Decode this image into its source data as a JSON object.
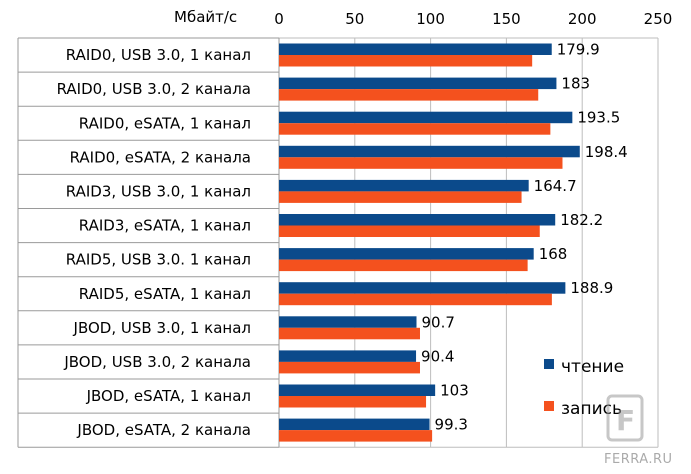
{
  "chart_data": {
    "type": "bar",
    "orientation": "horizontal",
    "unit_label": "Мбайт/с",
    "xlim": [
      0,
      250
    ],
    "xticks": [
      0,
      50,
      100,
      150,
      200,
      250
    ],
    "tick_position": "top",
    "grid": true,
    "legend_position": "bottom-right",
    "categories": [
      "RAID0, USB 3.0, 1 канал",
      "RAID0, USB 3.0, 2 канала",
      "RAID0, eSATA, 1 канал",
      "RAID0, eSATA, 2 канала",
      "RAID3, USB 3.0, 1 канал",
      "RAID3, eSATA, 1 канал",
      "RAID5, USB 3.0. 1 канал",
      "RAID5, eSATA, 1 канал",
      "JBOD, USB 3.0, 1 канал",
      "JBOD, USB 3.0, 2 канала",
      "JBOD, eSATA, 1 канал",
      "JBOD, eSATA, 2 канала"
    ],
    "series": [
      {
        "name": "чтение",
        "color": "#0b4a8b",
        "values": [
          179.9,
          183,
          193.5,
          198.4,
          164.7,
          182.2,
          168,
          188.9,
          90.7,
          90.4,
          103,
          99.3
        ],
        "labels": [
          "179.9",
          "183",
          "193.5",
          "198.4",
          "164.7",
          "182.2",
          "168",
          "188.9",
          "90.7",
          "90.4",
          "103",
          "99.3"
        ]
      },
      {
        "name": "запись",
        "color": "#f4511e",
        "values": [
          167,
          171,
          179,
          187,
          160,
          172,
          164,
          180,
          93,
          93,
          97,
          101
        ]
      }
    ]
  },
  "watermark": {
    "text": "FERRA.RU",
    "logo_text": "F"
  }
}
